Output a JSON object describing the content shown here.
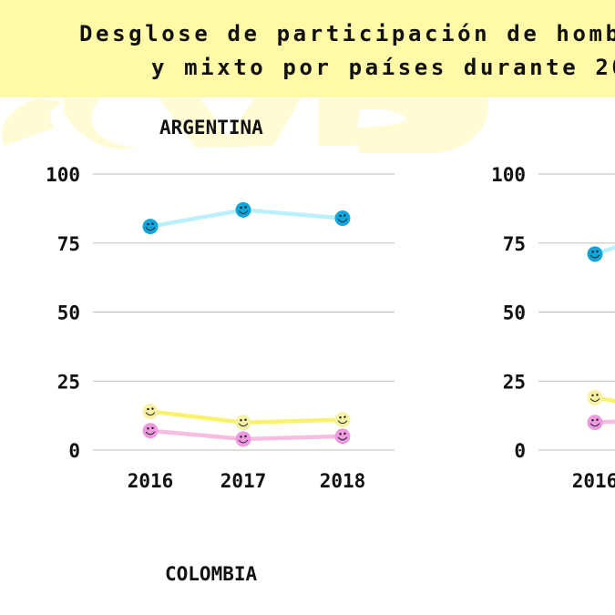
{
  "header": {
    "title_line1": "Desglose de participación de hombr",
    "title_line2": "y mixto por países durante 20"
  },
  "colors": {
    "header_bg": "#fff9a8",
    "watermark": "#fffbd4",
    "series_blue_marker": "#12a5dc",
    "series_blue_line": "#b9f0fb",
    "series_yellow_marker": "#f7f1a6",
    "series_yellow_line": "#fbf26c",
    "series_pink_marker": "#ee9ae0",
    "series_pink_line": "#f6bde1",
    "gridline": "#bdbdbd"
  },
  "chart_data": [
    {
      "type": "line",
      "title": "ARGENTINA",
      "categories": [
        "2016",
        "2017",
        "2018"
      ],
      "yticks": [
        "0",
        "25",
        "50",
        "75",
        "100"
      ],
      "ylim": [
        0,
        100
      ],
      "grid": true,
      "series": [
        {
          "name": "series-blue",
          "color": "#12a5dc",
          "values": [
            81,
            87,
            84
          ]
        },
        {
          "name": "series-yellow",
          "color": "#f7f1a6",
          "values": [
            14,
            10,
            11
          ]
        },
        {
          "name": "series-pink",
          "color": "#ee9ae0",
          "values": [
            7,
            4,
            5
          ]
        }
      ]
    },
    {
      "type": "line",
      "title": "",
      "categories": [
        "2016"
      ],
      "yticks": [
        "0",
        "25",
        "50",
        "75",
        "100"
      ],
      "ylim": [
        0,
        100
      ],
      "grid": true,
      "series": [
        {
          "name": "series-blue",
          "color": "#12a5dc",
          "values": [
            71
          ]
        },
        {
          "name": "series-yellow",
          "color": "#f7f1a6",
          "values": [
            19
          ]
        },
        {
          "name": "series-pink",
          "color": "#ee9ae0",
          "values": [
            10
          ]
        }
      ]
    },
    {
      "type": "line",
      "title": "COLOMBIA",
      "categories": [],
      "series": []
    }
  ]
}
